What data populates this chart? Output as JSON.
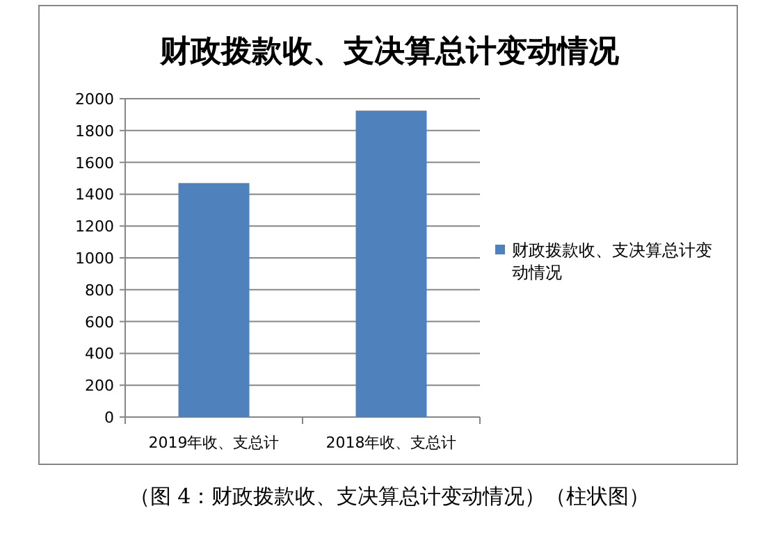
{
  "chart_data": {
    "type": "bar",
    "title": "财政拨款收、支决算总计变动情况",
    "categories": [
      "2019年收、支总计",
      "2018年收、支总计"
    ],
    "series": [
      {
        "name": "财政拨款收、支决算总计变动情况",
        "color": "#4f81bd",
        "values": [
          1470,
          1925
        ]
      }
    ],
    "ylim": [
      0,
      2000
    ],
    "yticks": [
      0,
      200,
      400,
      600,
      800,
      1000,
      1200,
      1400,
      1600,
      1800,
      2000
    ],
    "grid": "y",
    "legend": "right",
    "annotations": [
      "（图 4：财政拨款收、支决算总计变动情况）（柱状图）"
    ]
  }
}
